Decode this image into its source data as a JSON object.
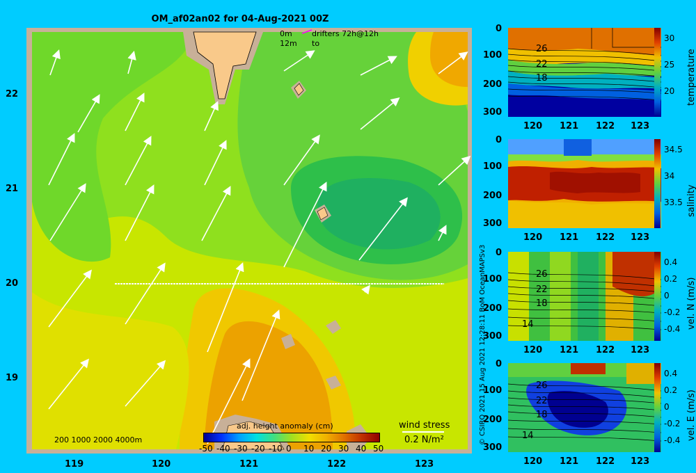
{
  "map": {
    "title": "OM_af02an02 for 04-Aug-2021 00Z",
    "x_ticks": [
      "119",
      "120",
      "121",
      "122",
      "123"
    ],
    "y_ticks": [
      "22",
      "21",
      "20",
      "19"
    ],
    "legend_top": {
      "line1_depth": "0m",
      "line1_text": "drifters 72h@12h",
      "line2_depth": "12m",
      "line2_text": "to"
    },
    "bathymetry_labels": "200  1000  2000  4000m",
    "colorbar": {
      "label": "adj. height anomaly (cm)",
      "ticks": [
        "-50",
        "-40",
        "-30",
        "-20",
        "-10",
        "0",
        "10",
        "20",
        "30",
        "40",
        "50"
      ]
    },
    "wind": {
      "label": "wind stress",
      "scale": "0.2 N/m²"
    }
  },
  "panels": [
    {
      "name": "temperature",
      "y_ticks": [
        "0",
        "100",
        "200",
        "300"
      ],
      "x_ticks": [
        "120",
        "121",
        "122",
        "123"
      ],
      "cb_ticks": [
        "30",
        "25",
        "20"
      ],
      "cb_label": "temperature",
      "contour_labels": [
        "26",
        "22",
        "18"
      ]
    },
    {
      "name": "salinity",
      "y_ticks": [
        "0",
        "100",
        "200",
        "300"
      ],
      "x_ticks": [
        "120",
        "121",
        "122",
        "123"
      ],
      "cb_ticks": [
        "34.5",
        "34",
        "33.5"
      ],
      "cb_label": "salinity",
      "contour_labels": []
    },
    {
      "name": "vel-n",
      "y_ticks": [
        "0",
        "100",
        "200",
        "300"
      ],
      "x_ticks": [
        "120",
        "121",
        "122",
        "123"
      ],
      "cb_ticks": [
        "0.4",
        "0.2",
        "0",
        "-0.2",
        "-0.4"
      ],
      "cb_label": "vel. N (m/s)",
      "contour_labels": [
        "26",
        "22",
        "18",
        "14"
      ]
    },
    {
      "name": "vel-e",
      "y_ticks": [
        "0",
        "100",
        "200",
        "300"
      ],
      "x_ticks": [
        "120",
        "121",
        "122",
        "123"
      ],
      "cb_ticks": [
        "0.4",
        "0.2",
        "0",
        "-0.2",
        "-0.4"
      ],
      "cb_label": "vel. E (m/s)",
      "contour_labels": [
        "26",
        "22",
        "18",
        "14"
      ]
    }
  ],
  "credit": "© CSIRO 2021   15 Aug 2021 12:28:11 BoM OceanMAPSv3",
  "colors": {
    "background": "#00ccff",
    "land": "#f9c98a",
    "frame": "#c8b098",
    "arrow": "#ffffff",
    "drifter": "#ff00ff"
  }
}
